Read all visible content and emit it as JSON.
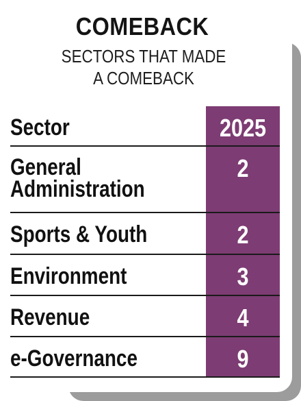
{
  "title": "COMEBACK",
  "subtitle": "SECTORS THAT MADE A COMEBACK",
  "table": {
    "header": {
      "label": "Sector",
      "value": "2025"
    },
    "rows": [
      {
        "label": "General Administration",
        "value": "2"
      },
      {
        "label": "Sports & Youth",
        "value": "2"
      },
      {
        "label": "Environment",
        "value": "3"
      },
      {
        "label": "Revenue",
        "value": "4"
      },
      {
        "label": "e-Governance",
        "value": "9"
      }
    ]
  },
  "colors": {
    "accent": "#7d3c73",
    "shadow": "#9c9c9c",
    "text": "#111111"
  }
}
